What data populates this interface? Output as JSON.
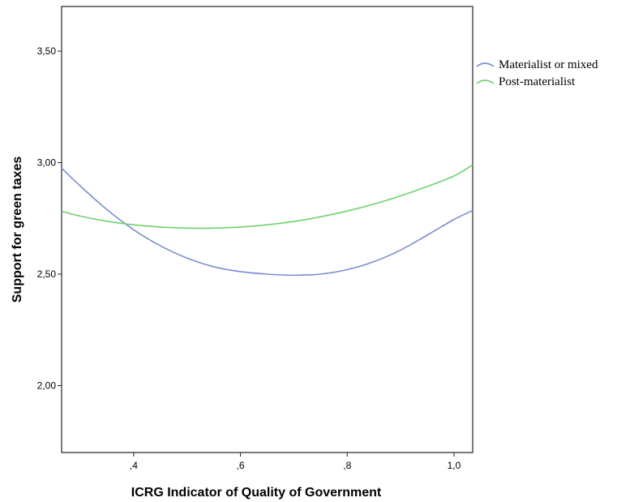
{
  "chart_data": {
    "type": "line",
    "title": "",
    "xlabel": "ICRG Indicator of Quality of Government",
    "ylabel": "Support for green taxes",
    "xlim": [
      0.265,
      1.035
    ],
    "ylim": [
      1.7,
      3.7
    ],
    "xticks": [
      0.4,
      0.6,
      0.8,
      1.0
    ],
    "xtick_labels": [
      ",4",
      ",6",
      ",8",
      "1,0"
    ],
    "yticks": [
      2.0,
      2.5,
      3.0,
      3.5
    ],
    "ytick_labels": [
      "2,00",
      "2,50",
      "3,00",
      "3,50"
    ],
    "grid": false,
    "legend_position": "right-top",
    "series": [
      {
        "name": "Materialist or mixed",
        "color": "#7b8fcf",
        "x": [
          0.265,
          0.3,
          0.35,
          0.4,
          0.45,
          0.5,
          0.55,
          0.6,
          0.65,
          0.7,
          0.75,
          0.8,
          0.85,
          0.9,
          0.95,
          1.0,
          1.035
        ],
        "y": [
          2.975,
          2.895,
          2.789,
          2.699,
          2.627,
          2.572,
          2.533,
          2.511,
          2.5,
          2.495,
          2.5,
          2.52,
          2.556,
          2.608,
          2.675,
          2.745,
          2.785
        ]
      },
      {
        "name": "Post-materialist",
        "color": "#6fd26f",
        "x": [
          0.265,
          0.3,
          0.35,
          0.4,
          0.45,
          0.5,
          0.55,
          0.6,
          0.65,
          0.7,
          0.75,
          0.8,
          0.85,
          0.9,
          0.95,
          1.0,
          1.035
        ],
        "y": [
          2.782,
          2.76,
          2.737,
          2.721,
          2.711,
          2.706,
          2.706,
          2.711,
          2.721,
          2.736,
          2.757,
          2.783,
          2.814,
          2.851,
          2.893,
          2.94,
          2.99
        ]
      }
    ]
  }
}
